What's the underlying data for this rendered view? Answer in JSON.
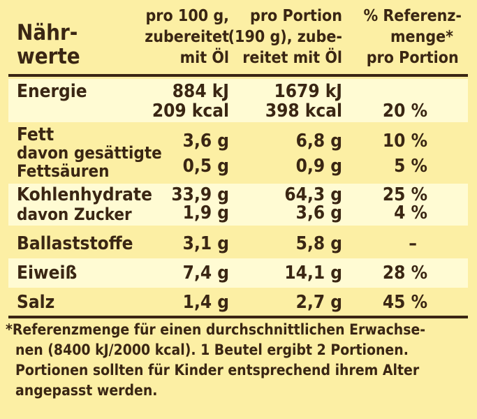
{
  "header": {
    "col0": [
      "Nähr-",
      "werte"
    ],
    "col1": [
      "pro 100 g,",
      "zubereitet",
      "mit Öl"
    ],
    "col2": [
      "pro Portion",
      "(190 g), zube-",
      "reitet mit Öl"
    ],
    "col3": [
      "% Referenz-",
      "menge*",
      "pro Portion"
    ]
  },
  "rows": {
    "energie": {
      "label": "Energie",
      "v1a": "884 kJ",
      "v1b": "209 kcal",
      "v2a": "1679 kJ",
      "v2b": "398 kcal",
      "v3": "20 %"
    },
    "fett": {
      "label": "Fett",
      "v1": "3,6 g",
      "v2": "6,8 g",
      "v3": "10 %"
    },
    "fett_sub": {
      "label_a": "davon gesättigte",
      "label_b": "Fettsäuren",
      "v1": "0,5 g",
      "v2": "0,9 g",
      "v3": "5 %"
    },
    "kh": {
      "label": "Kohlenhydrate",
      "v1": "33,9 g",
      "v2": "64,3 g",
      "v3": "25 %"
    },
    "zucker": {
      "label": "davon Zucker",
      "v1": "1,9 g",
      "v2": "3,6 g",
      "v3": "4 %"
    },
    "ballast": {
      "label": "Ballaststoffe",
      "v1": "3,1 g",
      "v2": "5,8 g",
      "v3": "–"
    },
    "eiweiss": {
      "label": "Eiweiß",
      "v1": "7,4 g",
      "v2": "14,1 g",
      "v3": "28 %"
    },
    "salz": {
      "label": "Salz",
      "v1": "1,4 g",
      "v2": "2,7 g",
      "v3": "45 %"
    }
  },
  "footnote": {
    "line1": "*Referenzmenge für einen durchschnittlichen Erwachse-",
    "line2": "nen (8400 kJ/2000 kcal). 1 Beutel ergibt 2 Portionen.",
    "line3": "Portionen sollten für Kinder entsprechend ihrem Alter",
    "line4": "angepasst werden."
  },
  "colors": {
    "background": "#fcefa4",
    "band": "#fffbd3",
    "text": "#3a2613"
  }
}
